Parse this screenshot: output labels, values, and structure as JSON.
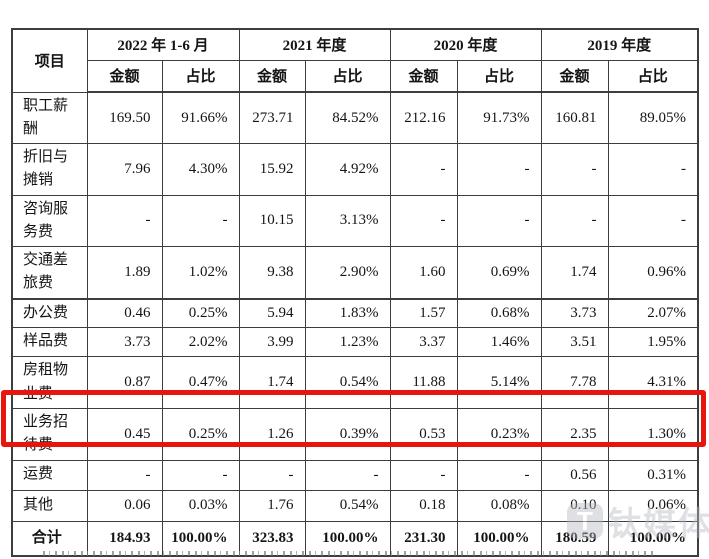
{
  "page": {
    "background_color": "#ffffff",
    "text_color": "#141414",
    "border_color": "#3d3d3d"
  },
  "table": {
    "header": {
      "item_col": "项目",
      "periods": [
        "2022 年 1-6 月",
        "2021 年度",
        "2020 年度",
        "2019 年度"
      ],
      "subcols": [
        "金额",
        "占比",
        "金额",
        "占比",
        "金额",
        "占比",
        "金额",
        "占比"
      ]
    },
    "rows": [
      {
        "label": "职工薪酬",
        "values": [
          "169.50",
          "91.66%",
          "273.71",
          "84.52%",
          "212.16",
          "91.73%",
          "160.81",
          "89.05%"
        ]
      },
      {
        "label": "折旧与摊销",
        "values": [
          "7.96",
          "4.30%",
          "15.92",
          "4.92%",
          "-",
          "-",
          "-",
          "-"
        ]
      },
      {
        "label": "咨询服务费",
        "values": [
          "-",
          "-",
          "10.15",
          "3.13%",
          "-",
          "-",
          "-",
          "-"
        ]
      },
      {
        "label": "交通差旅费",
        "values": [
          "1.89",
          "1.02%",
          "9.38",
          "2.90%",
          "1.60",
          "0.69%",
          "1.74",
          "0.96%"
        ]
      },
      {
        "label": "办公费",
        "values": [
          "0.46",
          "0.25%",
          "5.94",
          "1.83%",
          "1.57",
          "0.68%",
          "3.73",
          "2.07%"
        ]
      },
      {
        "label": "样品费",
        "values": [
          "3.73",
          "2.02%",
          "3.99",
          "1.23%",
          "3.37",
          "1.46%",
          "3.51",
          "1.95%"
        ]
      },
      {
        "label": "房租物业费",
        "values": [
          "0.87",
          "0.47%",
          "1.74",
          "0.54%",
          "11.88",
          "5.14%",
          "7.78",
          "4.31%"
        ]
      },
      {
        "label": "业务招待费",
        "values": [
          "0.45",
          "0.25%",
          "1.26",
          "0.39%",
          "0.53",
          "0.23%",
          "2.35",
          "1.30%"
        ]
      },
      {
        "label": "运费",
        "values": [
          "-",
          "-",
          "-",
          "-",
          "-",
          "-",
          "0.56",
          "0.31%"
        ]
      },
      {
        "label": "其他",
        "values": [
          "0.06",
          "0.03%",
          "1.76",
          "0.54%",
          "0.18",
          "0.08%",
          "0.10",
          "0.06%"
        ]
      },
      {
        "label": "合计",
        "is_total": true,
        "values": [
          "184.93",
          "100.00%",
          "323.83",
          "100.00%",
          "231.30",
          "100.00%",
          "180.59",
          "100.00%"
        ]
      }
    ],
    "highlight_row_index": 7
  },
  "highlight": {
    "color": "#e8150e",
    "row_label": "业务招待费"
  },
  "watermark": {
    "logo_glyph": "T",
    "text": "钛媒体",
    "color": "#b7bcc3"
  }
}
